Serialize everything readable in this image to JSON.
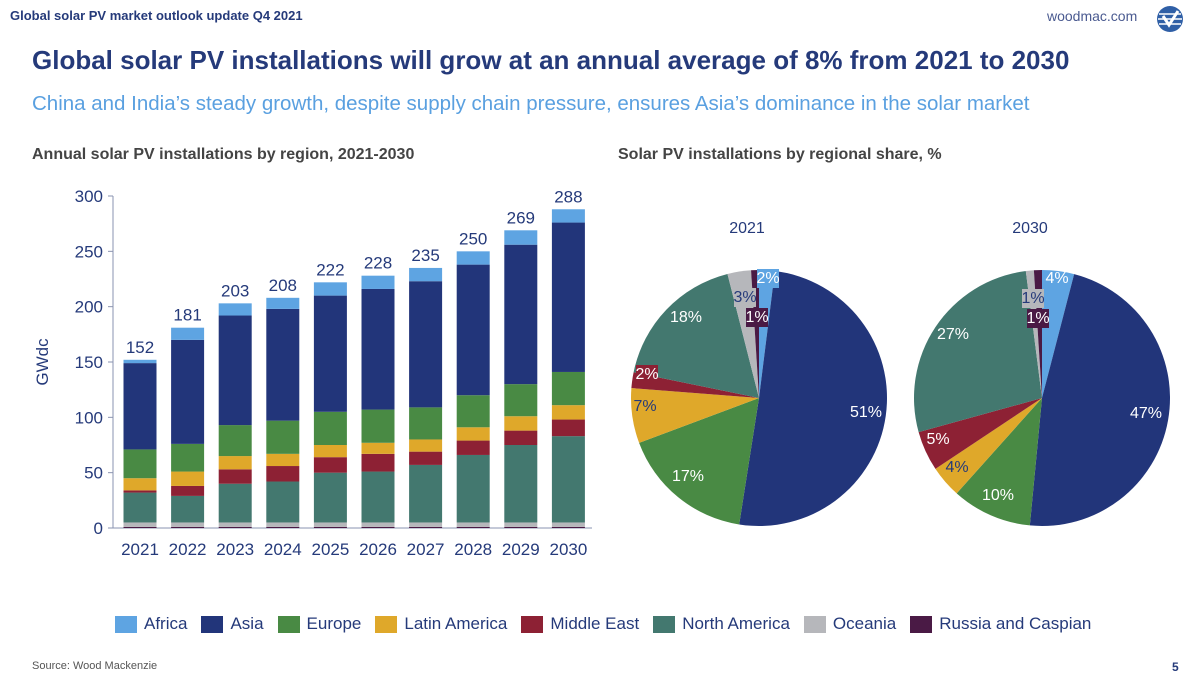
{
  "header": {
    "top_label": "Global solar PV market outlook update Q4 2021",
    "site": "woodmac.com",
    "logo_icon": "woodmac-logo-icon",
    "title": "Global solar PV installations will grow at an annual average of 8% from 2021 to 2030",
    "subtitle": "China and India’s steady growth, despite supply chain pressure, ensures Asia’s dominance in the solar market"
  },
  "footer": {
    "source": "Source: Wood Mackenzie",
    "page": "5"
  },
  "legend": [
    {
      "name": "Africa",
      "color": "#5ea4e2"
    },
    {
      "name": "Asia",
      "color": "#22357a"
    },
    {
      "name": "Europe",
      "color": "#498a44"
    },
    {
      "name": "Latin America",
      "color": "#dfa82a"
    },
    {
      "name": "Middle East",
      "color": "#8d2134"
    },
    {
      "name": "North America",
      "color": "#43786f"
    },
    {
      "name": "Oceania",
      "color": "#b6b7bb"
    },
    {
      "name": "Russia and Caspian",
      "color": "#4a1a45"
    }
  ],
  "chart_data": [
    {
      "type": "bar",
      "stacked": true,
      "title": "Annual solar PV installations by region, 2021-2030",
      "ylabel": "GWdc",
      "ylim": [
        0,
        300
      ],
      "yticks": [
        0,
        50,
        100,
        150,
        200,
        250,
        300
      ],
      "grid": false,
      "legend": "bottom",
      "categories": [
        "2021",
        "2022",
        "2023",
        "2024",
        "2025",
        "2026",
        "2027",
        "2028",
        "2029",
        "2030"
      ],
      "totals": [
        152,
        181,
        203,
        208,
        222,
        228,
        235,
        250,
        269,
        288
      ],
      "series": [
        {
          "name": "Russia and Caspian",
          "values": [
            1,
            1,
            1,
            1,
            1,
            1,
            1,
            1,
            1,
            1
          ]
        },
        {
          "name": "Oceania",
          "values": [
            4,
            4,
            4,
            4,
            4,
            4,
            4,
            4,
            4,
            4
          ]
        },
        {
          "name": "North America",
          "values": [
            27,
            24,
            35,
            37,
            45,
            46,
            52,
            61,
            70,
            78
          ]
        },
        {
          "name": "Middle East",
          "values": [
            2,
            9,
            13,
            14,
            14,
            16,
            12,
            13,
            13,
            15
          ]
        },
        {
          "name": "Latin America",
          "values": [
            11,
            13,
            12,
            11,
            11,
            10,
            11,
            12,
            13,
            13
          ]
        },
        {
          "name": "Europe",
          "values": [
            26,
            25,
            28,
            30,
            30,
            30,
            29,
            29,
            29,
            30
          ]
        },
        {
          "name": "Asia",
          "values": [
            78,
            94,
            99,
            101,
            105,
            109,
            114,
            118,
            126,
            135
          ]
        },
        {
          "name": "Africa",
          "values": [
            3,
            11,
            11,
            10,
            12,
            12,
            12,
            12,
            13,
            12
          ]
        }
      ]
    },
    {
      "type": "pie",
      "title": "Solar PV installations by regional share, %",
      "pies": [
        {
          "label": "2021",
          "slices": [
            {
              "name": "Africa",
              "value": 2,
              "label": "2%"
            },
            {
              "name": "Asia",
              "value": 51,
              "label": "51%"
            },
            {
              "name": "Europe",
              "value": 17,
              "label": "17%"
            },
            {
              "name": "Latin America",
              "value": 7,
              "label": "7%"
            },
            {
              "name": "Middle East",
              "value": 2,
              "label": "2%"
            },
            {
              "name": "North America",
              "value": 18,
              "label": "18%"
            },
            {
              "name": "Oceania",
              "value": 3,
              "label": "3%"
            },
            {
              "name": "Russia and Caspian",
              "value": 1,
              "label": "1%"
            }
          ]
        },
        {
          "label": "2030",
          "slices": [
            {
              "name": "Africa",
              "value": 4,
              "label": "4%"
            },
            {
              "name": "Asia",
              "value": 47,
              "label": "47%"
            },
            {
              "name": "Europe",
              "value": 10,
              "label": "10%"
            },
            {
              "name": "Latin America",
              "value": 4,
              "label": "4%"
            },
            {
              "name": "Middle East",
              "value": 5,
              "label": "5%"
            },
            {
              "name": "North America",
              "value": 27,
              "label": "27%"
            },
            {
              "name": "Oceania",
              "value": 1,
              "label": "1%"
            },
            {
              "name": "Russia and Caspian",
              "value": 1,
              "label": "1%"
            }
          ]
        }
      ]
    }
  ]
}
